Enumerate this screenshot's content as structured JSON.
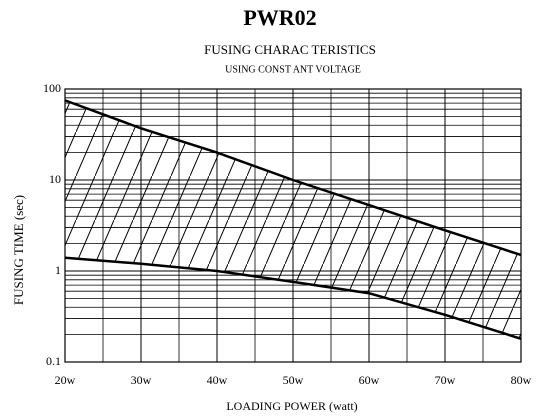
{
  "chart_data": {
    "type": "line",
    "title": "PWR02",
    "subtitle": "FUSING CHARAC TERISTICS",
    "subtitle2": "USING CONST ANT VOLTAGE",
    "xlabel": "LOADING POWER (watt)",
    "ylabel": "FUSING TIME (sec)",
    "x": [
      20,
      30,
      40,
      50,
      60,
      70,
      80
    ],
    "series": [
      {
        "color": "#000000",
        "values": [
          75,
          37,
          20,
          10,
          5.3,
          2.8,
          1.5
        ]
      },
      {
        "color": "#000000",
        "values": [
          1.4,
          1.2,
          1.0,
          0.76,
          0.57,
          0.33,
          0.18
        ]
      }
    ],
    "xlim": [
      20,
      80
    ],
    "xticks": [
      {
        "value": 20,
        "label": "20w"
      },
      {
        "value": 30,
        "label": "30w"
      },
      {
        "value": 40,
        "label": "40w"
      },
      {
        "value": 50,
        "label": "50w"
      },
      {
        "value": 60,
        "label": "60w"
      },
      {
        "value": 70,
        "label": "70w"
      },
      {
        "value": 80,
        "label": "80w"
      }
    ],
    "xgrid": [
      25,
      35,
      45,
      55,
      65,
      75
    ],
    "ylim": [
      0.1,
      100
    ],
    "yticks": [
      0.1,
      1,
      10,
      100
    ],
    "log_y": true,
    "grid": true,
    "hatched_band": true
  }
}
